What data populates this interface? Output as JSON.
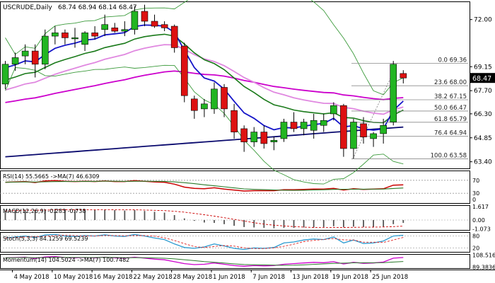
{
  "header": {
    "symbol_text": "USCRUDE,Daily",
    "ohlc_text": "68.74 68.94 68.14 68.47"
  },
  "price_axis": {
    "ticks": [
      "72.00",
      "69.15",
      "67.70",
      "66.30",
      "64.85",
      "63.40"
    ],
    "current_price": "68.47",
    "price_label_color": "#000000"
  },
  "fibonacci": {
    "levels": [
      {
        "label": "0.0 69.36",
        "value": 69.36
      },
      {
        "label": "23.6 68.00",
        "value": 68.0
      },
      {
        "label": "38.2 67.15",
        "value": 67.15
      },
      {
        "label": "50.0 66.47",
        "value": 66.47
      },
      {
        "label": "61.8 65.79",
        "value": 65.79
      },
      {
        "label": "76.4 64.94",
        "value": 64.94
      },
      {
        "label": "100.0 63.58",
        "value": 63.58
      }
    ]
  },
  "indicators": {
    "rsi": {
      "label": "RSI(14) 55.5665 ->MA(7) 46.6309",
      "axis_labels": [
        "70",
        "30",
        "0"
      ]
    },
    "macd": {
      "label": "MACD(12,26,9) -0.283 -0.738",
      "axis_labels": [
        "1.617",
        "0.00",
        "-1.073"
      ]
    },
    "stoch": {
      "label": "Stoch(5,3,3) 84.1259 69.5239",
      "axis_labels": [
        "80",
        "20"
      ]
    },
    "momentum": {
      "label": "Momentum(14) 104.5024 ->MA(7) 100.7482",
      "axis_labels": [
        "108.5160",
        "89.3836"
      ]
    }
  },
  "x_axis": {
    "labels": [
      "4 May 2018",
      "10 May 2018",
      "16 May 2018",
      "22 May 2018",
      "28 May 2018",
      "1 Jun 2018",
      "7 Jun 2018",
      "13 Jun 2018",
      "19 Jun 2018",
      "25 Jun 2018"
    ]
  },
  "colors": {
    "bull": "#22b522",
    "bear": "#dd1111",
    "ma_fast": "#1515c8",
    "ma_mid": "#1a7a1a",
    "ma_slow": "#e088e0",
    "ma_magenta": "#cc00cc",
    "ma_long": "#0a0a6e",
    "bb": "#3b9a3b",
    "rsi": "#cc0000",
    "rsi_ma": "#2a7a2a",
    "macd_signal": "#cc0000",
    "stoch_k": "#2a9ad0",
    "stoch_d": "#dd2222",
    "mom": "#cc00cc",
    "mom_ma": "#2a7a2a"
  },
  "chart_data": {
    "type": "candlestick",
    "y_range": [
      63.0,
      73.1
    ],
    "candles": [
      {
        "date": "2018-05-03",
        "o": 68.1,
        "h": 69.5,
        "l": 67.8,
        "c": 69.3
      },
      {
        "date": "2018-05-04",
        "o": 69.3,
        "h": 70.0,
        "l": 68.9,
        "c": 69.7
      },
      {
        "date": "2018-05-07",
        "o": 69.8,
        "h": 70.5,
        "l": 69.3,
        "c": 70.1
      },
      {
        "date": "2018-05-08",
        "o": 70.1,
        "h": 70.5,
        "l": 68.5,
        "c": 69.3
      },
      {
        "date": "2018-05-09",
        "o": 69.3,
        "h": 71.4,
        "l": 69.0,
        "c": 71.0
      },
      {
        "date": "2018-05-10",
        "o": 71.0,
        "h": 71.6,
        "l": 70.5,
        "c": 71.2
      },
      {
        "date": "2018-05-11",
        "o": 71.2,
        "h": 71.4,
        "l": 70.5,
        "c": 70.9
      },
      {
        "date": "2018-05-14",
        "o": 70.9,
        "h": 71.5,
        "l": 70.3,
        "c": 70.9
      },
      {
        "date": "2018-05-15",
        "o": 70.5,
        "h": 71.3,
        "l": 70.1,
        "c": 71.2
      },
      {
        "date": "2018-05-16",
        "o": 71.2,
        "h": 71.6,
        "l": 70.8,
        "c": 71.0
      },
      {
        "date": "2018-05-17",
        "o": 71.4,
        "h": 72.3,
        "l": 71.0,
        "c": 71.7
      },
      {
        "date": "2018-05-18",
        "o": 71.5,
        "h": 71.8,
        "l": 71.2,
        "c": 71.3
      },
      {
        "date": "2018-05-21",
        "o": 71.3,
        "h": 71.9,
        "l": 71.0,
        "c": 71.4
      },
      {
        "date": "2018-05-22",
        "o": 71.4,
        "h": 72.8,
        "l": 71.1,
        "c": 72.5
      },
      {
        "date": "2018-05-23",
        "o": 72.5,
        "h": 72.9,
        "l": 71.6,
        "c": 71.9
      },
      {
        "date": "2018-05-24",
        "o": 71.9,
        "h": 72.3,
        "l": 71.5,
        "c": 71.6
      },
      {
        "date": "2018-05-25",
        "o": 71.7,
        "h": 71.9,
        "l": 71.3,
        "c": 71.5
      },
      {
        "date": "2018-05-28",
        "o": 71.6,
        "h": 71.7,
        "l": 70.0,
        "c": 70.3
      },
      {
        "date": "2018-05-29",
        "o": 70.4,
        "h": 70.6,
        "l": 67.0,
        "c": 67.4
      },
      {
        "date": "2018-05-30",
        "o": 67.2,
        "h": 67.4,
        "l": 66.0,
        "c": 66.5
      },
      {
        "date": "2018-05-31",
        "o": 66.6,
        "h": 67.2,
        "l": 66.1,
        "c": 66.9
      },
      {
        "date": "2018-06-01",
        "o": 66.6,
        "h": 68.2,
        "l": 66.3,
        "c": 67.8
      },
      {
        "date": "2018-06-04",
        "o": 67.9,
        "h": 68.1,
        "l": 66.1,
        "c": 66.6
      },
      {
        "date": "2018-06-05",
        "o": 66.5,
        "h": 66.9,
        "l": 64.8,
        "c": 65.2
      },
      {
        "date": "2018-06-06",
        "o": 65.4,
        "h": 65.6,
        "l": 64.0,
        "c": 64.6
      },
      {
        "date": "2018-06-07",
        "o": 64.6,
        "h": 65.5,
        "l": 64.3,
        "c": 65.2
      },
      {
        "date": "2018-06-08",
        "o": 65.2,
        "h": 65.6,
        "l": 64.2,
        "c": 64.5
      },
      {
        "date": "2018-06-11",
        "o": 64.6,
        "h": 64.9,
        "l": 64.1,
        "c": 64.7
      },
      {
        "date": "2018-06-12",
        "o": 64.8,
        "h": 66.0,
        "l": 64.6,
        "c": 65.8
      },
      {
        "date": "2018-06-13",
        "o": 65.8,
        "h": 66.4,
        "l": 65.2,
        "c": 65.4
      },
      {
        "date": "2018-06-14",
        "o": 65.4,
        "h": 66.0,
        "l": 65.0,
        "c": 65.8
      },
      {
        "date": "2018-06-15",
        "o": 65.3,
        "h": 66.3,
        "l": 64.8,
        "c": 65.9
      },
      {
        "date": "2018-06-18",
        "o": 65.6,
        "h": 66.3,
        "l": 65.2,
        "c": 65.9
      },
      {
        "date": "2018-06-19",
        "o": 66.3,
        "h": 67.0,
        "l": 65.9,
        "c": 66.8
      },
      {
        "date": "2018-06-20",
        "o": 66.8,
        "h": 66.9,
        "l": 63.7,
        "c": 64.2
      },
      {
        "date": "2018-06-21",
        "o": 64.2,
        "h": 66.0,
        "l": 63.6,
        "c": 65.8
      },
      {
        "date": "2018-06-22",
        "o": 65.7,
        "h": 66.1,
        "l": 64.5,
        "c": 64.9
      },
      {
        "date": "2018-06-25",
        "o": 64.8,
        "h": 65.2,
        "l": 64.3,
        "c": 65.1
      },
      {
        "date": "2018-06-26",
        "o": 65.1,
        "h": 66.0,
        "l": 64.5,
        "c": 65.6
      },
      {
        "date": "2018-06-27",
        "o": 65.8,
        "h": 69.5,
        "l": 65.6,
        "c": 69.3
      },
      {
        "date": "2018-06-28",
        "o": 68.74,
        "h": 68.94,
        "l": 68.14,
        "c": 68.47
      }
    ]
  }
}
